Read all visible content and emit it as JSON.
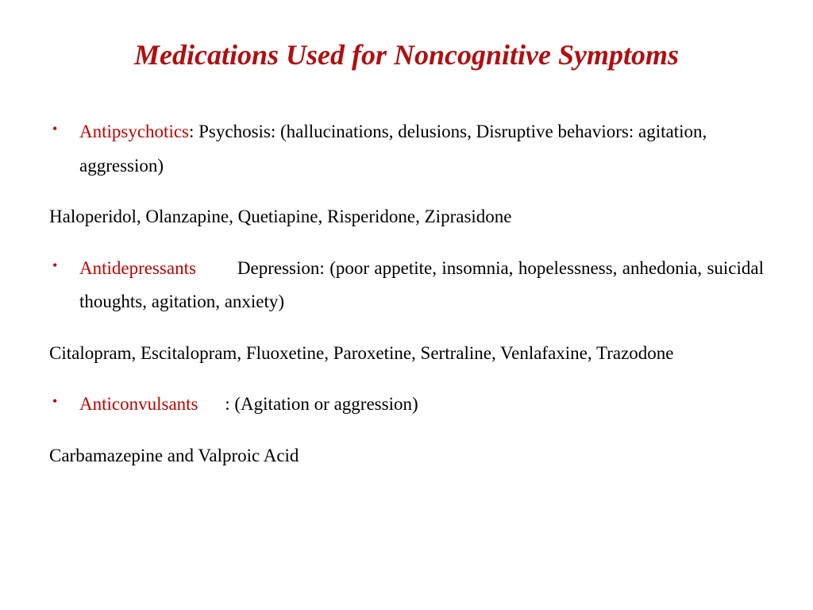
{
  "title": "Medications Used for Noncognitive Symptoms",
  "colors": {
    "title": "#b20e10",
    "bullet": "#c00000",
    "category": "#c00000",
    "body": "#000000"
  },
  "sections": [
    {
      "category": "Antipsychotics",
      "description": ": Psychosis: (hallucinations, delusions, Disruptive behaviors: agitation, aggression)",
      "justify": false,
      "medications": "Haloperidol, Olanzapine, Quetiapine, Risperidone, Ziprasidone",
      "medsJustify": false,
      "spacing": "none"
    },
    {
      "category": "Antidepressants",
      "description": "Depression: (poor appetite, insomnia, hopelessness, anhedonia, suicidal thoughts, agitation, anxiety)",
      "justify": true,
      "medications": "Citalopram, Escitalopram, Fluoxetine, Paroxetine, Sertraline, Venlafaxine, Trazodone",
      "medsJustify": true,
      "spacing": "wide"
    },
    {
      "category": "Anticonvulsants",
      "description": ": (Agitation or aggression)",
      "justify": false,
      "medications": "Carbamazepine  and Valproic Acid",
      "medsJustify": false,
      "spacing": "small"
    }
  ]
}
